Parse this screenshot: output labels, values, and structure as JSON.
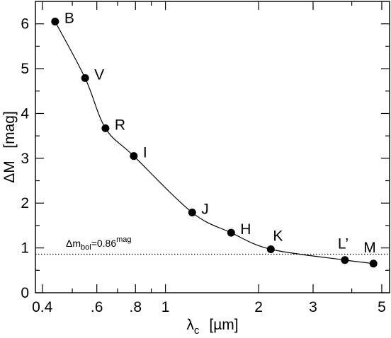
{
  "chart_data": {
    "type": "line",
    "x_scale": "log",
    "xlim": [
      0.38,
      5.3
    ],
    "ylim": [
      0,
      6.5
    ],
    "grid": false,
    "x_ticks": [
      {
        "value": 0.4,
        "label": "0.4"
      },
      {
        "value": 0.6,
        "label": ".6"
      },
      {
        "value": 0.8,
        "label": ".8"
      },
      {
        "value": 1,
        "label": "1"
      },
      {
        "value": 2,
        "label": "2"
      },
      {
        "value": 3,
        "label": "3"
      },
      {
        "value": 5,
        "label": "5"
      }
    ],
    "x_minor_ticks": [
      0.5,
      0.7,
      0.9,
      4
    ],
    "y_ticks": [
      {
        "value": 0,
        "label": "0"
      },
      {
        "value": 1,
        "label": "1"
      },
      {
        "value": 2,
        "label": "2"
      },
      {
        "value": 3,
        "label": "3"
      },
      {
        "value": 4,
        "label": "4"
      },
      {
        "value": 5,
        "label": "5"
      },
      {
        "value": 6,
        "label": "6"
      }
    ],
    "xlabel": {
      "main": "λ",
      "sub": "c",
      "unit": "[µm]"
    },
    "ylabel": "ΔM   [mag]",
    "series": [
      {
        "points": [
          {
            "label": "B",
            "x": 0.44,
            "y": 6.05
          },
          {
            "label": "V",
            "x": 0.55,
            "y": 4.79
          },
          {
            "label": "R",
            "x": 0.64,
            "y": 3.67
          },
          {
            "label": "I",
            "x": 0.79,
            "y": 3.05
          },
          {
            "label": "J",
            "x": 1.22,
            "y": 1.79
          },
          {
            "label": "H",
            "x": 1.63,
            "y": 1.34
          },
          {
            "label": "K",
            "x": 2.19,
            "y": 0.97
          },
          {
            "label": "L’",
            "x": 3.8,
            "y": 0.73
          },
          {
            "label": "M",
            "x": 4.7,
            "y": 0.65
          }
        ]
      }
    ],
    "reference_line": {
      "y": 0.86,
      "style": "dotted",
      "label_main": "Δm",
      "label_sub": "bol",
      "label_value": "=0.86",
      "label_sup": "mag"
    }
  }
}
